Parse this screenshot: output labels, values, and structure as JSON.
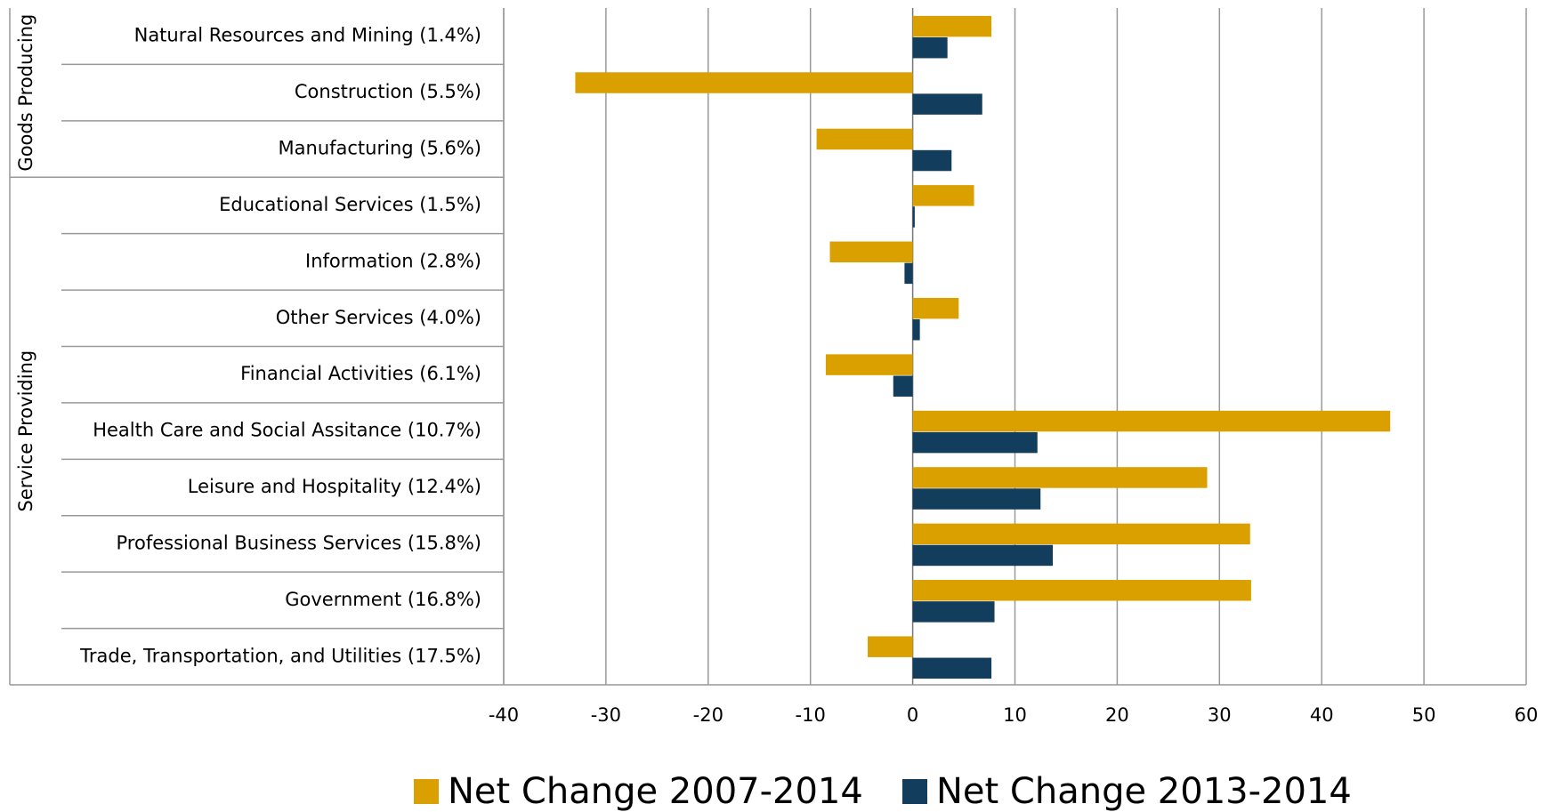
{
  "chart_data": {
    "type": "bar",
    "orientation": "horizontal",
    "categories": [
      "Natural Resources and Mining (1.4%)",
      "Construction (5.5%)",
      "Manufacturing (5.6%)",
      "Educational Services (1.5%)",
      "Information (2.8%)",
      "Other Services (4.0%)",
      "Financial Activities (6.1%)",
      "Health Care and Social Assitance (10.7%)",
      "Leisure and Hospitality (12.4%)",
      "Professional Business Services (15.8%)",
      "Government (16.8%)",
      "Trade, Transportation, and Utilities (17.5%)"
    ],
    "groups": [
      {
        "name": "Goods Producing",
        "size": 3
      },
      {
        "name": "Service Providing",
        "size": 9
      }
    ],
    "series": [
      {
        "name": "Net Change 2007-2014",
        "color": "#d9a000",
        "values": [
          7.7,
          -33,
          -9.4,
          6.0,
          -8.1,
          4.5,
          -8.5,
          46.7,
          28.8,
          33.0,
          33.1,
          -4.4
        ]
      },
      {
        "name": "Net Change 2013-2014",
        "color": "#123d5c",
        "values": [
          3.4,
          6.8,
          3.8,
          0.2,
          -0.8,
          0.7,
          -1.9,
          12.2,
          12.5,
          13.7,
          8.0,
          7.7
        ]
      }
    ],
    "xlim": [
      -40,
      60
    ],
    "xticks": [
      -40,
      -30,
      -20,
      -10,
      0,
      10,
      20,
      30,
      40,
      50,
      60
    ],
    "grid": true,
    "legend": "bottom"
  }
}
